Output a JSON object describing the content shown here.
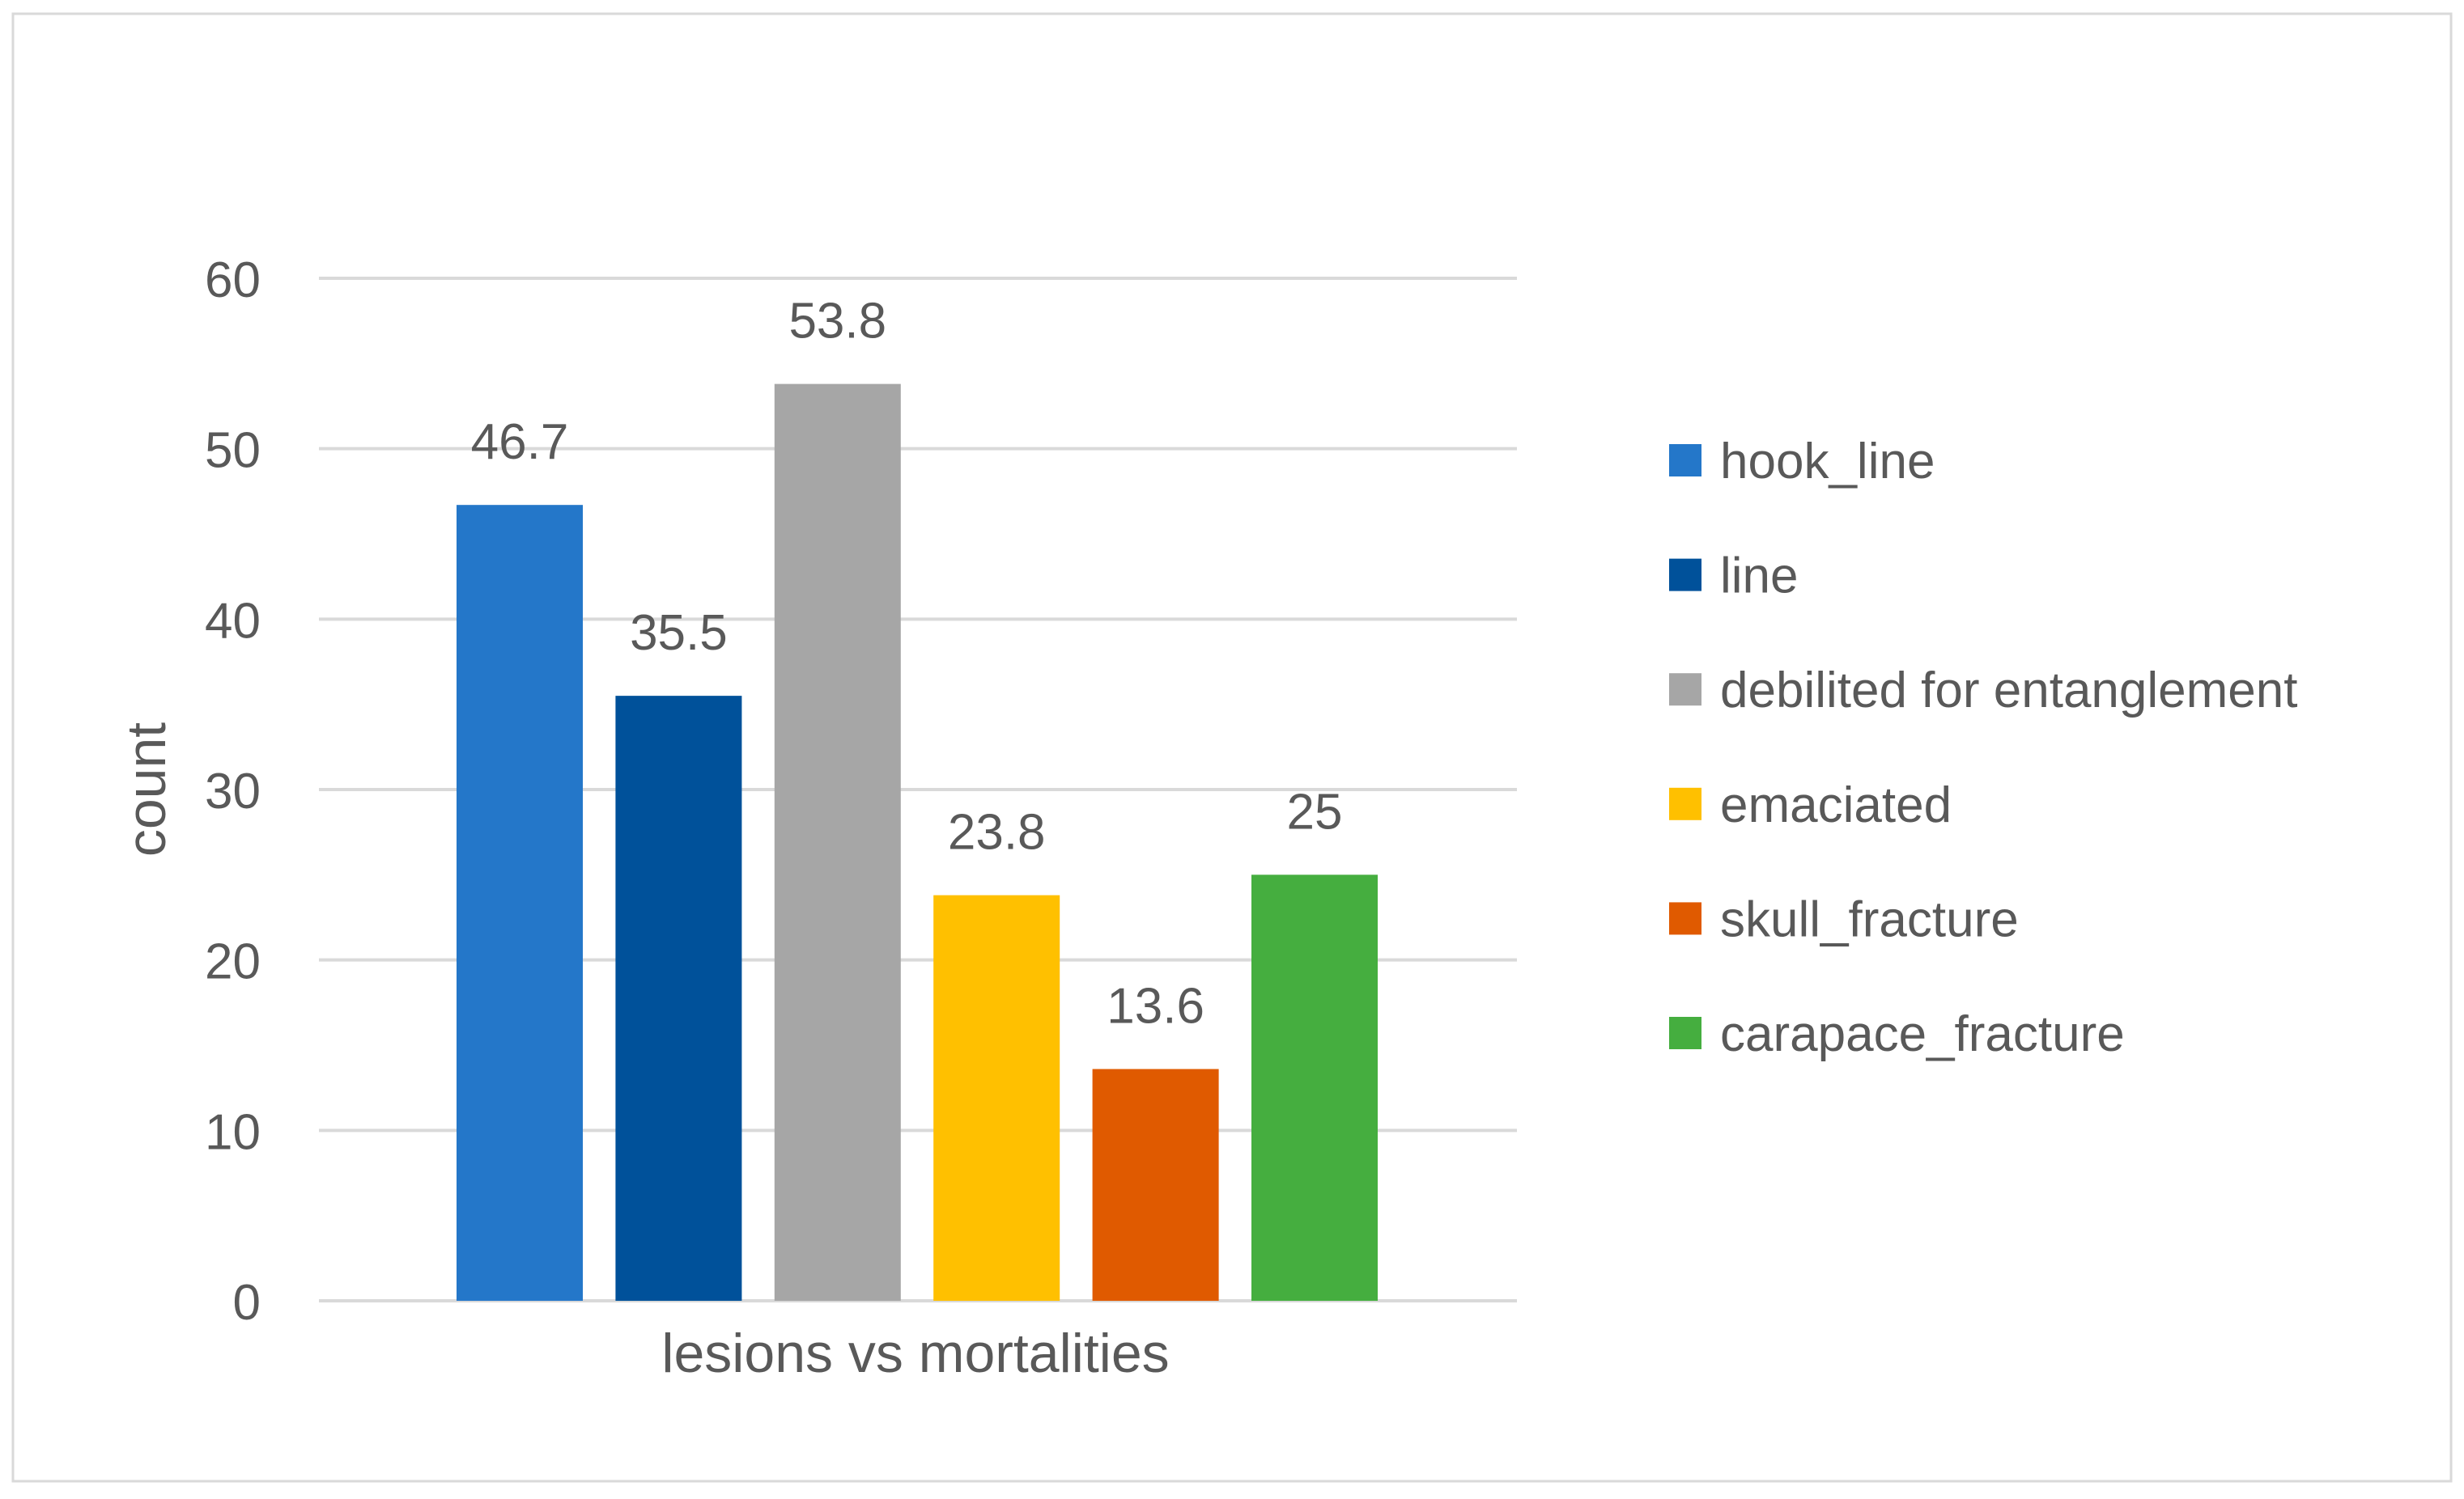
{
  "chart_data": {
    "type": "bar",
    "title": "",
    "xlabel": "lesions vs mortalities",
    "ylabel": "count",
    "ylim": [
      0,
      60
    ],
    "yticks": [
      0,
      10,
      20,
      30,
      40,
      50,
      60
    ],
    "grid": true,
    "legend_position": "right",
    "categories": [
      "lesions vs mortalities"
    ],
    "series": [
      {
        "name": "hook_line",
        "values": [
          46.7
        ],
        "label": "46.7",
        "color": "#2477C9"
      },
      {
        "name": "line",
        "values": [
          35.5
        ],
        "label": "35.5",
        "color": "#00519A"
      },
      {
        "name": "debilited for entanglement",
        "values": [
          53.8
        ],
        "label": "53.8",
        "color": "#A6A6A6"
      },
      {
        "name": "emaciated",
        "values": [
          23.8
        ],
        "label": "23.8",
        "color": "#FFC000"
      },
      {
        "name": "skull_fracture",
        "values": [
          13.6
        ],
        "label": "13.6",
        "color": "#E05A00"
      },
      {
        "name": "carapace_fracture",
        "values": [
          25
        ],
        "label": "25",
        "color": "#45AE3F"
      }
    ]
  }
}
